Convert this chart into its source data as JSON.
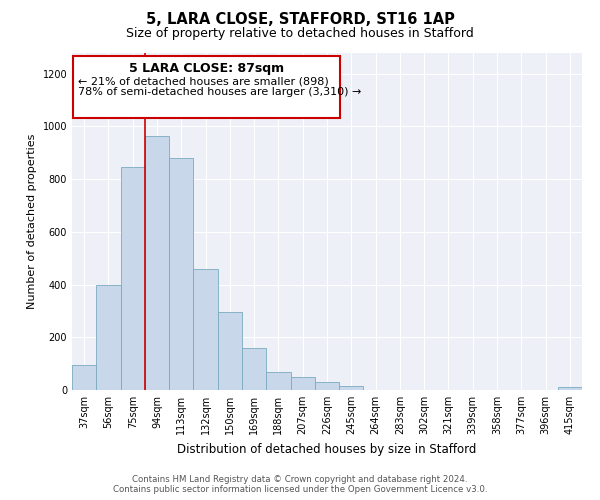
{
  "title": "5, LARA CLOSE, STAFFORD, ST16 1AP",
  "subtitle": "Size of property relative to detached houses in Stafford",
  "xlabel": "Distribution of detached houses by size in Stafford",
  "ylabel": "Number of detached properties",
  "categories": [
    "37sqm",
    "56sqm",
    "75sqm",
    "94sqm",
    "113sqm",
    "132sqm",
    "150sqm",
    "169sqm",
    "188sqm",
    "207sqm",
    "226sqm",
    "245sqm",
    "264sqm",
    "283sqm",
    "302sqm",
    "321sqm",
    "339sqm",
    "358sqm",
    "377sqm",
    "396sqm",
    "415sqm"
  ],
  "values": [
    95,
    400,
    845,
    965,
    880,
    460,
    295,
    160,
    70,
    50,
    32,
    15,
    0,
    0,
    0,
    0,
    0,
    0,
    0,
    0,
    12
  ],
  "bar_color": "#c8d8ea",
  "bar_edge_color": "#7aaabf",
  "vline_color": "#cc0000",
  "annotation_title": "5 LARA CLOSE: 87sqm",
  "annotation_line1": "← 21% of detached houses are smaller (898)",
  "annotation_line2": "78% of semi-detached houses are larger (3,310) →",
  "annotation_box_color": "#ffffff",
  "annotation_box_edge_color": "#cc0000",
  "ylim": [
    0,
    1280
  ],
  "yticks": [
    0,
    200,
    400,
    600,
    800,
    1000,
    1200
  ],
  "footer_line1": "Contains HM Land Registry data © Crown copyright and database right 2024.",
  "footer_line2": "Contains public sector information licensed under the Open Government Licence v3.0.",
  "bg_color": "#edf1f7",
  "grid_color": "#ffffff",
  "title_fontsize": 10.5,
  "subtitle_fontsize": 9,
  "ylabel_fontsize": 8,
  "xlabel_fontsize": 8.5,
  "tick_fontsize": 7,
  "footer_fontsize": 6.2
}
